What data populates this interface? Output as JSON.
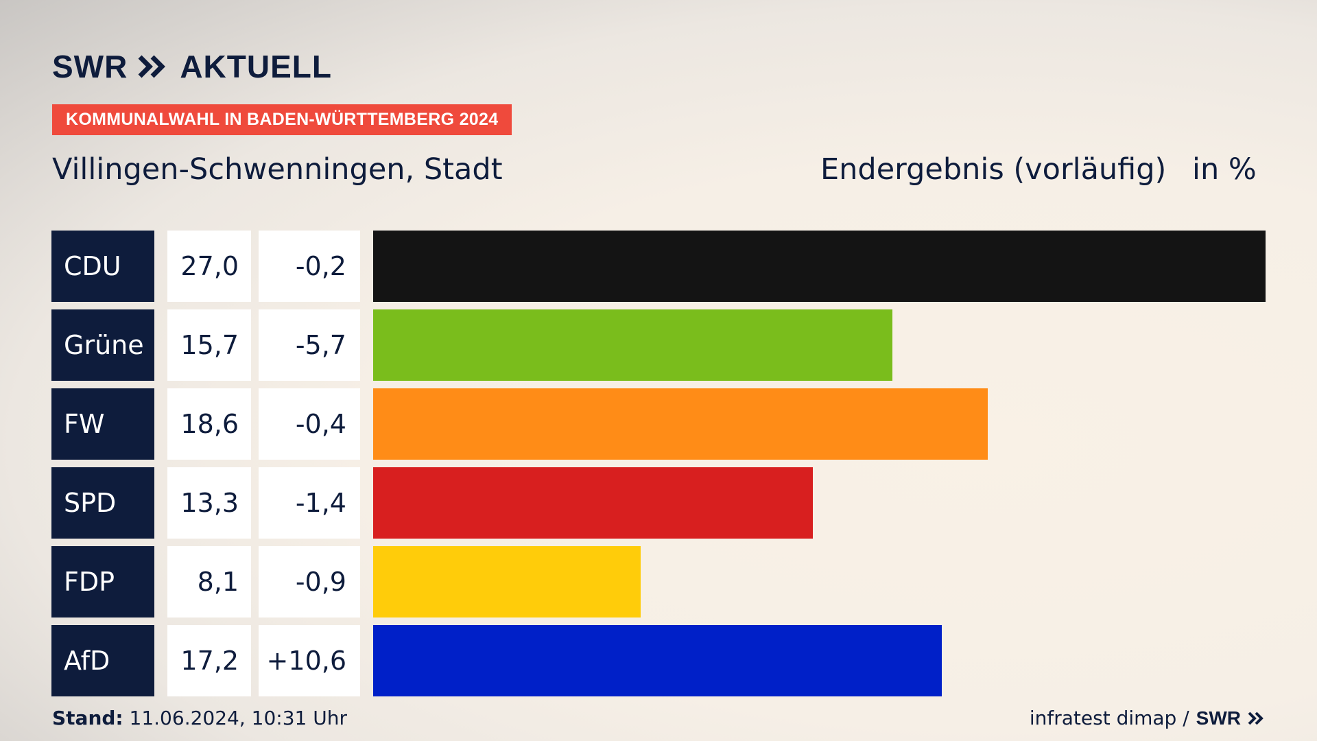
{
  "brand": {
    "swr": "SWR",
    "aktuell": "AKTUELL"
  },
  "badge": "KOMMUNALWAHL IN BADEN-WÜRTTEMBERG 2024",
  "place": "Villingen-Schwenningen, Stadt",
  "result_label": "Endergebnis (vorläufig)",
  "unit_label": "in %",
  "colors": {
    "navy": "#0e1c3c",
    "badge": "#ef4a3c"
  },
  "chart_data": {
    "type": "bar",
    "orientation": "horizontal",
    "categories": [
      "CDU",
      "Grüne",
      "FW",
      "SPD",
      "FDP",
      "AfD"
    ],
    "values": [
      27.0,
      15.7,
      18.6,
      13.3,
      8.1,
      17.2
    ],
    "value_labels": [
      "27,0",
      "15,7",
      "18,6",
      "13,3",
      "8,1",
      "17,2"
    ],
    "changes": [
      -0.2,
      -5.7,
      -0.4,
      -1.4,
      -0.9,
      10.6
    ],
    "change_labels": [
      "-0,2",
      "-5,7",
      "-0,4",
      "-1,4",
      "-0,9",
      "+10,6"
    ],
    "colors": [
      "#141414",
      "#7abd1c",
      "#ff8c17",
      "#d81f1f",
      "#ffcc0a",
      "#0020c8"
    ],
    "xlim": [
      0,
      27.0
    ],
    "title": "Villingen-Schwenningen, Stadt",
    "unit": "%"
  },
  "footer": {
    "stand_label": "Stand:",
    "stand_value": "11.06.2024, 10:31 Uhr",
    "source": "infratest dimap /",
    "swr": "SWR"
  }
}
